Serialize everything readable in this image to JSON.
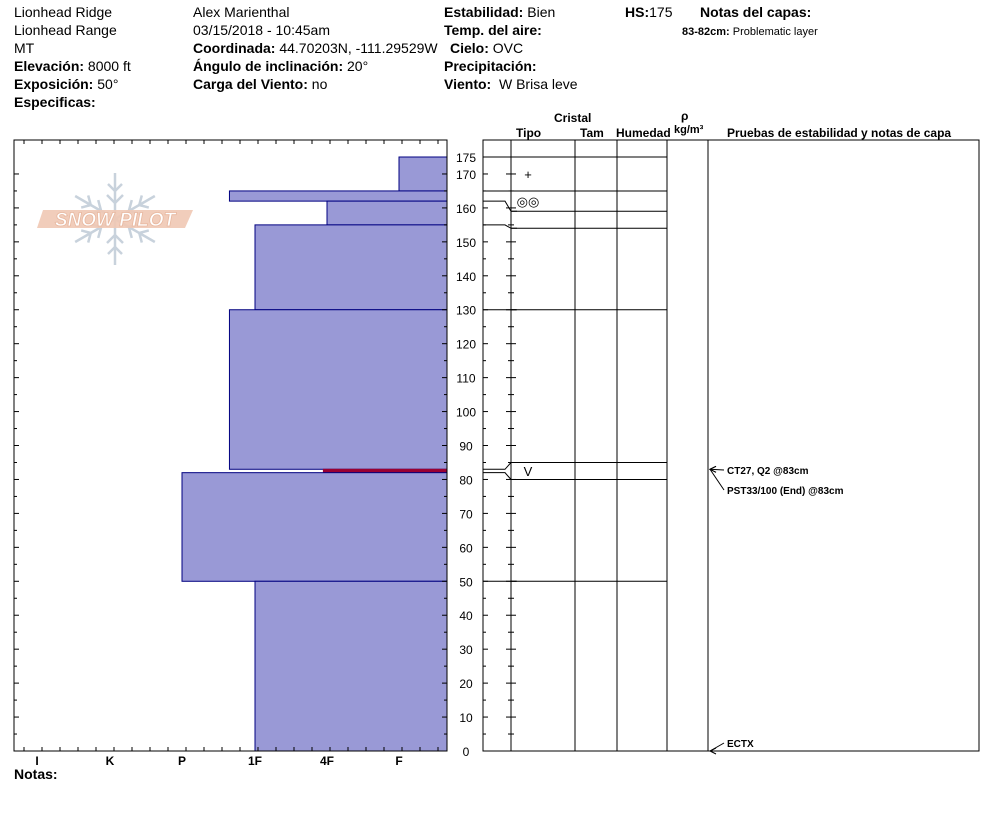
{
  "header": {
    "location": "Lionhead Ridge",
    "range": "Lionhead Range",
    "state": "MT",
    "elevation_label": "Elevación:",
    "elevation": "8000 ft",
    "aspect_label": "Exposición:",
    "aspect": "50°",
    "specifics_label": "Especificas:",
    "observer": "Alex Marienthal",
    "datetime": "03/15/2018 - 10:45am",
    "coord_label": "Coordinada:",
    "coord": "44.70203N, -111.29529W",
    "slope_label": "Ángulo de inclinación:",
    "slope": "20°",
    "wind_load_label": "Carga del Viento:",
    "wind_load": "no",
    "stability_label": "Estabilidad:",
    "stability": "Bien",
    "air_temp_label": "Temp. del aire:",
    "sky_label": "Cielo:",
    "sky": "OVC",
    "precip_label": "Precipitación:",
    "wind_label": "Viento:",
    "wind": "W Brisa leve",
    "hs_label": "HS:",
    "hs": "175",
    "layer_notes_label": "Notas del capas:",
    "layer_note_depth": "83-82cm:",
    "layer_note_text": "Problematic layer"
  },
  "columns": {
    "crystal": "Cristal",
    "type": "Tipo",
    "size": "Tam",
    "moisture": "Humedad",
    "rho": "ρ",
    "density_unit": "kg/m³",
    "tests": "Pruebas de estabilidad y notas de capa"
  },
  "logo_text": "SNOW PILOT",
  "notes_label": "Notas:",
  "colors": {
    "layer_fill": "#9999d6",
    "layer_stroke": "#000080",
    "weak_layer": "#990033"
  },
  "chart_data": {
    "type": "bar",
    "title": "",
    "xlabel": "",
    "ylabel": "",
    "ylim": [
      0,
      175
    ],
    "hardness_scale": [
      "I",
      "K",
      "P",
      "1F",
      "4F",
      "F"
    ],
    "y_ticks": [
      0,
      10,
      20,
      30,
      40,
      50,
      60,
      70,
      80,
      90,
      100,
      110,
      120,
      130,
      140,
      150,
      160,
      170,
      175
    ],
    "layers": [
      {
        "top": 175,
        "bottom": 165,
        "hardness": 5.0
      },
      {
        "top": 165,
        "bottom": 162,
        "hardness": 2.65
      },
      {
        "top": 162,
        "bottom": 155,
        "hardness": 4.0
      },
      {
        "top": 155,
        "bottom": 130,
        "hardness": 3.0
      },
      {
        "top": 130,
        "bottom": 83,
        "hardness": 2.65
      },
      {
        "top": 83,
        "bottom": 82,
        "hardness": 3.95,
        "weak": true
      },
      {
        "top": 82,
        "bottom": 50,
        "hardness": 2.0
      },
      {
        "top": 50,
        "bottom": 0,
        "hardness": 3.0
      }
    ],
    "table_boundaries": [
      {
        "depth": 175,
        "left_depth": 175
      },
      {
        "depth": 165,
        "left_depth": 165
      },
      {
        "depth": 159,
        "left_depth": 162
      },
      {
        "depth": 154,
        "left_depth": 155
      },
      {
        "depth": 130,
        "left_depth": 130
      },
      {
        "depth": 85,
        "left_depth": 83
      },
      {
        "depth": 80,
        "left_depth": 82
      },
      {
        "depth": 50,
        "left_depth": 50
      }
    ],
    "crystal_symbols": [
      {
        "depth": 170,
        "symbol": "+"
      },
      {
        "depth": 162,
        "symbol": "◎◎"
      },
      {
        "depth": 82.5,
        "symbol": "V"
      }
    ],
    "tests": [
      {
        "depth": 83,
        "text": "CT27, Q2 @83cm"
      },
      {
        "depth": 83,
        "text": "PST33/100 (End) @83cm"
      },
      {
        "depth": 0,
        "text": "ECTX"
      }
    ]
  }
}
